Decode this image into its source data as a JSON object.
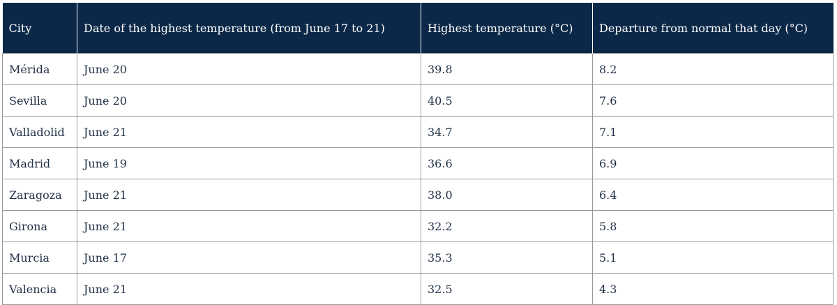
{
  "table": {
    "header": [
      "City",
      "Date of the highest temperature (from June 17 to 21)",
      "Highest temperature (°C)",
      "Departure from normal that day (°C)"
    ],
    "rows": [
      [
        "Mérida",
        "June 20",
        "39.8",
        "8.2"
      ],
      [
        "Sevilla",
        "June 20",
        "40.5",
        "7.6"
      ],
      [
        "Valladolid",
        "June 21",
        "34.7",
        "7.1"
      ],
      [
        "Madrid",
        "June 19",
        "36.6",
        "6.9"
      ],
      [
        "Zaragoza",
        "June 21",
        "38.0",
        "6.4"
      ],
      [
        "Girona",
        "June 21",
        "32.2",
        "5.8"
      ],
      [
        "Murcia",
        "June 17",
        "35.3",
        "5.1"
      ],
      [
        "Valencia",
        "June 21",
        "32.5",
        "4.3"
      ]
    ]
  }
}
